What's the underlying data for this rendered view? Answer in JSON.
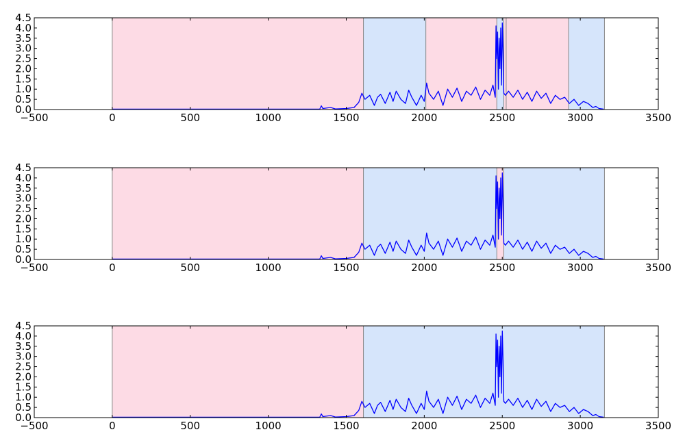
{
  "chart_data": [
    {
      "type": "line",
      "xlim": [
        -500,
        3500
      ],
      "ylim": [
        0,
        4.5
      ],
      "x_ticks": [
        "−500",
        "0",
        "500",
        "1000",
        "1500",
        "2000",
        "2500",
        "3000",
        "3500"
      ],
      "x_tick_values": [
        -500,
        0,
        500,
        1000,
        1500,
        2000,
        2500,
        3000,
        3500
      ],
      "y_ticks": [
        "0.0",
        "0.5",
        "1.0",
        "1.5",
        "2.0",
        "2.5",
        "3.0",
        "3.5",
        "4.0",
        "4.5"
      ],
      "y_tick_values": [
        0,
        0.5,
        1,
        1.5,
        2,
        2.5,
        3,
        3.5,
        4,
        4.5
      ],
      "grid": false,
      "regions": [
        {
          "start": 0,
          "end": 1610,
          "class": "pink"
        },
        {
          "start": 1610,
          "end": 2010,
          "class": "blue"
        },
        {
          "start": 2010,
          "end": 2465,
          "class": "pink"
        },
        {
          "start": 2465,
          "end": 2510,
          "class": "blue"
        },
        {
          "start": 2510,
          "end": 2525,
          "class": "pink"
        },
        {
          "start": 2525,
          "end": 2925,
          "class": "pink"
        },
        {
          "start": 2925,
          "end": 3155,
          "class": "blue"
        }
      ],
      "series": [
        {
          "x": [
            0,
            1330,
            1340,
            1350,
            1400,
            1430,
            1500,
            1550,
            1580,
            1600,
            1620,
            1650,
            1680,
            1700,
            1720,
            1750,
            1780,
            1800,
            1820,
            1850,
            1880,
            1900,
            1920,
            1950,
            1980,
            2000,
            2015,
            2030,
            2060,
            2090,
            2120,
            2150,
            2180,
            2210,
            2240,
            2270,
            2300,
            2330,
            2360,
            2390,
            2420,
            2440,
            2455,
            2460,
            2465,
            2470,
            2475,
            2480,
            2485,
            2490,
            2495,
            2500,
            2505,
            2510,
            2520,
            2540,
            2570,
            2600,
            2630,
            2660,
            2690,
            2720,
            2750,
            2780,
            2810,
            2840,
            2870,
            2900,
            2930,
            2960,
            2990,
            3020,
            3050,
            3080,
            3100,
            3120,
            3150
          ],
          "y": [
            0.02,
            0.02,
            0.18,
            0.05,
            0.1,
            0.03,
            0.05,
            0.1,
            0.35,
            0.8,
            0.5,
            0.7,
            0.2,
            0.6,
            0.75,
            0.3,
            0.85,
            0.4,
            0.9,
            0.5,
            0.3,
            0.95,
            0.6,
            0.2,
            0.7,
            0.4,
            1.3,
            0.8,
            0.5,
            0.9,
            0.2,
            1.0,
            0.6,
            1.05,
            0.4,
            0.9,
            0.7,
            1.1,
            0.5,
            0.95,
            0.7,
            1.2,
            0.6,
            4.1,
            2.5,
            3.8,
            1.0,
            3.5,
            2.0,
            4.0,
            1.2,
            4.25,
            2.8,
            0.8,
            0.7,
            0.9,
            0.6,
            0.95,
            0.5,
            0.85,
            0.4,
            0.9,
            0.55,
            0.8,
            0.3,
            0.7,
            0.5,
            0.6,
            0.3,
            0.5,
            0.2,
            0.4,
            0.3,
            0.1,
            0.15,
            0.05,
            0.02
          ],
          "color": "#0000ff"
        }
      ]
    },
    {
      "type": "line",
      "xlim": [
        -500,
        3500
      ],
      "ylim": [
        0,
        4.5
      ],
      "x_ticks": [
        "−500",
        "0",
        "500",
        "1000",
        "1500",
        "2000",
        "2500",
        "3000",
        "3500"
      ],
      "x_tick_values": [
        -500,
        0,
        500,
        1000,
        1500,
        2000,
        2500,
        3000,
        3500
      ],
      "y_ticks": [
        "0.0",
        "0.5",
        "1.0",
        "1.5",
        "2.0",
        "2.5",
        "3.0",
        "3.5",
        "4.0",
        "4.5"
      ],
      "y_tick_values": [
        0,
        0.5,
        1,
        1.5,
        2,
        2.5,
        3,
        3.5,
        4,
        4.5
      ],
      "grid": false,
      "regions": [
        {
          "start": 0,
          "end": 1610,
          "class": "pink"
        },
        {
          "start": 1610,
          "end": 2465,
          "class": "blue"
        },
        {
          "start": 2465,
          "end": 2510,
          "class": "pink"
        },
        {
          "start": 2510,
          "end": 3155,
          "class": "blue"
        }
      ],
      "series": [
        {
          "x": [
            0,
            1330,
            1340,
            1350,
            1400,
            1430,
            1500,
            1550,
            1580,
            1600,
            1620,
            1650,
            1680,
            1700,
            1720,
            1750,
            1780,
            1800,
            1820,
            1850,
            1880,
            1900,
            1920,
            1950,
            1980,
            2000,
            2015,
            2030,
            2060,
            2090,
            2120,
            2150,
            2180,
            2210,
            2240,
            2270,
            2300,
            2330,
            2360,
            2390,
            2420,
            2440,
            2455,
            2460,
            2465,
            2470,
            2475,
            2480,
            2485,
            2490,
            2495,
            2500,
            2505,
            2510,
            2520,
            2540,
            2570,
            2600,
            2630,
            2660,
            2690,
            2720,
            2750,
            2780,
            2810,
            2840,
            2870,
            2900,
            2930,
            2960,
            2990,
            3020,
            3050,
            3080,
            3100,
            3120,
            3150
          ],
          "y": [
            0.02,
            0.02,
            0.18,
            0.05,
            0.1,
            0.03,
            0.05,
            0.1,
            0.35,
            0.8,
            0.5,
            0.7,
            0.2,
            0.6,
            0.75,
            0.3,
            0.85,
            0.4,
            0.9,
            0.5,
            0.3,
            0.95,
            0.6,
            0.2,
            0.7,
            0.4,
            1.3,
            0.8,
            0.5,
            0.9,
            0.2,
            1.0,
            0.6,
            1.05,
            0.4,
            0.9,
            0.7,
            1.1,
            0.5,
            0.95,
            0.7,
            1.2,
            0.6,
            4.1,
            2.5,
            3.8,
            1.0,
            3.5,
            2.0,
            4.0,
            1.2,
            4.25,
            2.8,
            0.8,
            0.7,
            0.9,
            0.6,
            0.95,
            0.5,
            0.85,
            0.4,
            0.9,
            0.55,
            0.8,
            0.3,
            0.7,
            0.5,
            0.6,
            0.3,
            0.5,
            0.2,
            0.4,
            0.3,
            0.1,
            0.15,
            0.05,
            0.02
          ],
          "color": "#0000ff"
        }
      ]
    },
    {
      "type": "line",
      "xlim": [
        -500,
        3500
      ],
      "ylim": [
        0,
        4.5
      ],
      "x_ticks": [
        "−500",
        "0",
        "500",
        "1000",
        "1500",
        "2000",
        "2500",
        "3000",
        "3500"
      ],
      "x_tick_values": [
        -500,
        0,
        500,
        1000,
        1500,
        2000,
        2500,
        3000,
        3500
      ],
      "y_ticks": [
        "0.0",
        "0.5",
        "1.0",
        "1.5",
        "2.0",
        "2.5",
        "3.0",
        "3.5",
        "4.0",
        "4.5"
      ],
      "y_tick_values": [
        0,
        0.5,
        1,
        1.5,
        2,
        2.5,
        3,
        3.5,
        4,
        4.5
      ],
      "grid": false,
      "regions": [
        {
          "start": 0,
          "end": 1610,
          "class": "pink"
        },
        {
          "start": 1610,
          "end": 3155,
          "class": "blue"
        }
      ],
      "series": [
        {
          "x": [
            0,
            1330,
            1340,
            1350,
            1400,
            1430,
            1500,
            1550,
            1580,
            1600,
            1620,
            1650,
            1680,
            1700,
            1720,
            1750,
            1780,
            1800,
            1820,
            1850,
            1880,
            1900,
            1920,
            1950,
            1980,
            2000,
            2015,
            2030,
            2060,
            2090,
            2120,
            2150,
            2180,
            2210,
            2240,
            2270,
            2300,
            2330,
            2360,
            2390,
            2420,
            2440,
            2455,
            2460,
            2465,
            2470,
            2475,
            2480,
            2485,
            2490,
            2495,
            2500,
            2505,
            2510,
            2520,
            2540,
            2570,
            2600,
            2630,
            2660,
            2690,
            2720,
            2750,
            2780,
            2810,
            2840,
            2870,
            2900,
            2930,
            2960,
            2990,
            3020,
            3050,
            3080,
            3100,
            3120,
            3150
          ],
          "y": [
            0.02,
            0.02,
            0.18,
            0.05,
            0.1,
            0.03,
            0.05,
            0.1,
            0.35,
            0.8,
            0.5,
            0.7,
            0.2,
            0.6,
            0.75,
            0.3,
            0.85,
            0.4,
            0.9,
            0.5,
            0.3,
            0.95,
            0.6,
            0.2,
            0.7,
            0.4,
            1.3,
            0.8,
            0.5,
            0.9,
            0.2,
            1.0,
            0.6,
            1.05,
            0.4,
            0.9,
            0.7,
            1.1,
            0.5,
            0.95,
            0.7,
            1.2,
            0.6,
            4.1,
            2.5,
            3.8,
            1.0,
            3.5,
            2.0,
            4.0,
            1.2,
            4.25,
            2.8,
            0.8,
            0.7,
            0.9,
            0.6,
            0.95,
            0.5,
            0.85,
            0.4,
            0.9,
            0.55,
            0.8,
            0.3,
            0.7,
            0.5,
            0.6,
            0.3,
            0.5,
            0.2,
            0.4,
            0.3,
            0.1,
            0.15,
            0.05,
            0.02
          ],
          "color": "#0000ff"
        }
      ]
    }
  ],
  "colors": {
    "pink": "#fddbe5",
    "blue": "#d6e5fb",
    "boundary": "#888888",
    "axis": "#000000"
  }
}
